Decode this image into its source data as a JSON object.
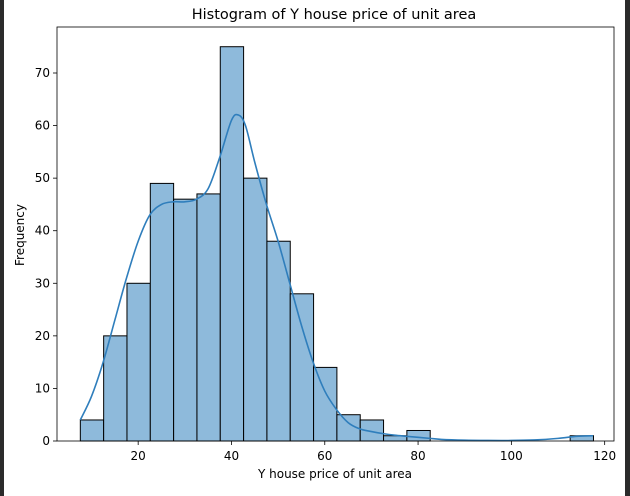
{
  "chart_data": {
    "type": "bar",
    "subtype": "histogram-with-kde",
    "title": "Histogram of Y house price of unit area",
    "xlabel": "Y house price of unit area",
    "ylabel": "Frequency",
    "xlim": [
      2.6,
      122.0
    ],
    "ylim": [
      0,
      78.75
    ],
    "xticks": [
      20,
      40,
      60,
      80,
      100,
      120
    ],
    "yticks": [
      0,
      10,
      20,
      30,
      40,
      50,
      60,
      70
    ],
    "grid": false,
    "legend": "none",
    "bar_color": "#8ebadb",
    "bar_edge_color": "#000000",
    "kde_color": "#2f7ebc",
    "bins": [
      {
        "x0": 7.6,
        "x1": 12.6,
        "count": 4
      },
      {
        "x0": 12.6,
        "x1": 17.6,
        "count": 20
      },
      {
        "x0": 17.6,
        "x1": 22.6,
        "count": 30
      },
      {
        "x0": 22.6,
        "x1": 27.6,
        "count": 49
      },
      {
        "x0": 27.6,
        "x1": 32.6,
        "count": 46
      },
      {
        "x0": 32.6,
        "x1": 37.6,
        "count": 47
      },
      {
        "x0": 37.6,
        "x1": 42.6,
        "count": 75
      },
      {
        "x0": 42.6,
        "x1": 47.6,
        "count": 50
      },
      {
        "x0": 47.6,
        "x1": 52.6,
        "count": 38
      },
      {
        "x0": 52.6,
        "x1": 57.6,
        "count": 28
      },
      {
        "x0": 57.6,
        "x1": 62.6,
        "count": 14
      },
      {
        "x0": 62.6,
        "x1": 67.6,
        "count": 5
      },
      {
        "x0": 67.6,
        "x1": 72.6,
        "count": 4
      },
      {
        "x0": 72.6,
        "x1": 77.6,
        "count": 1
      },
      {
        "x0": 77.6,
        "x1": 82.6,
        "count": 2
      },
      {
        "x0": 112.6,
        "x1": 117.6,
        "count": 1
      }
    ],
    "kde": {
      "x": [
        7.6,
        10,
        12.5,
        15,
        17.5,
        20,
        22.5,
        25,
        27.5,
        30,
        32.5,
        35,
        37.5,
        40,
        41.5,
        43,
        45,
        47.5,
        50,
        52.5,
        55,
        57.5,
        60,
        62.5,
        65,
        67.5,
        70,
        72.5,
        75,
        77.5,
        80,
        82.5,
        85,
        90,
        95,
        100,
        105,
        110,
        114,
        117.5
      ],
      "y": [
        4,
        8.5,
        15,
        23,
        31,
        38,
        43,
        45,
        45.5,
        45.5,
        46,
        48,
        54,
        61,
        62,
        60,
        53,
        45,
        38,
        30,
        22,
        15,
        9.5,
        6,
        3.5,
        2.3,
        1.8,
        1.4,
        1.1,
        0.9,
        0.7,
        0.5,
        0.3,
        0.15,
        0.1,
        0.1,
        0.2,
        0.5,
        0.9,
        1.0
      ]
    }
  }
}
